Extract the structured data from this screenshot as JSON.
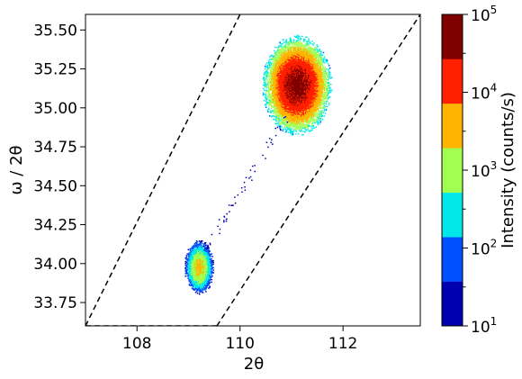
{
  "chart_data": {
    "type": "heatmap",
    "title": "",
    "xlabel": "2θ",
    "ylabel": "ω / 2θ",
    "xlim": [
      107.0,
      113.5
    ],
    "ylim": [
      33.6,
      35.6
    ],
    "x_ticks": [
      {
        "value": 108,
        "label": "108"
      },
      {
        "value": 110,
        "label": "110"
      },
      {
        "value": 112,
        "label": "112"
      }
    ],
    "y_ticks": [
      {
        "value": 33.75,
        "label": "33.75"
      },
      {
        "value": 34.0,
        "label": "34.00"
      },
      {
        "value": 34.25,
        "label": "34.25"
      },
      {
        "value": 34.5,
        "label": "34.50"
      },
      {
        "value": 34.75,
        "label": "34.75"
      },
      {
        "value": 35.0,
        "label": "35.00"
      },
      {
        "value": 35.25,
        "label": "35.25"
      },
      {
        "value": 35.5,
        "label": "35.50"
      }
    ],
    "colorbar": {
      "label": "Intensity (counts/s)",
      "scale": "log",
      "range": [
        10,
        100000
      ],
      "major_ticks": [
        {
          "exp": 1,
          "base": "10",
          "sup": "1"
        },
        {
          "exp": 2,
          "base": "10",
          "sup": "2"
        },
        {
          "exp": 3,
          "base": "10",
          "sup": "3"
        },
        {
          "exp": 4,
          "base": "10",
          "sup": "4"
        },
        {
          "exp": 5,
          "base": "10",
          "sup": "5"
        }
      ],
      "minor_tick_exps": [
        1.5,
        2.5,
        3.5,
        4.5
      ],
      "color_levels": [
        "#0000b0",
        "#0050ff",
        "#00e8e8",
        "#a0ff50",
        "#ffb400",
        "#ff2000",
        "#800000"
      ]
    },
    "peaks": [
      {
        "x_center": 111.1,
        "y_center": 35.14,
        "peak_intensity": 50000,
        "sigma_x": 0.2,
        "sigma_y": 0.095,
        "extent_sigma": 3.4
      },
      {
        "x_center": 109.2,
        "y_center": 33.97,
        "peak_intensity": 3000,
        "sigma_x": 0.09,
        "sigma_y": 0.055,
        "extent_sigma": 3.2
      }
    ],
    "streak": {
      "from": [
        109.3,
        34.08
      ],
      "to": [
        110.9,
        34.95
      ],
      "intensity": 12
    },
    "boundary_lines": [
      {
        "points": [
          [
            107.0,
            33.6
          ],
          [
            110.0,
            35.6
          ]
        ],
        "style": "dashed"
      },
      {
        "points": [
          [
            109.55,
            33.6
          ],
          [
            113.5,
            35.6
          ]
        ],
        "style": "dashed"
      },
      {
        "points": [
          [
            107.0,
            33.6
          ],
          [
            109.55,
            33.6
          ]
        ],
        "style": "dashed"
      }
    ]
  }
}
